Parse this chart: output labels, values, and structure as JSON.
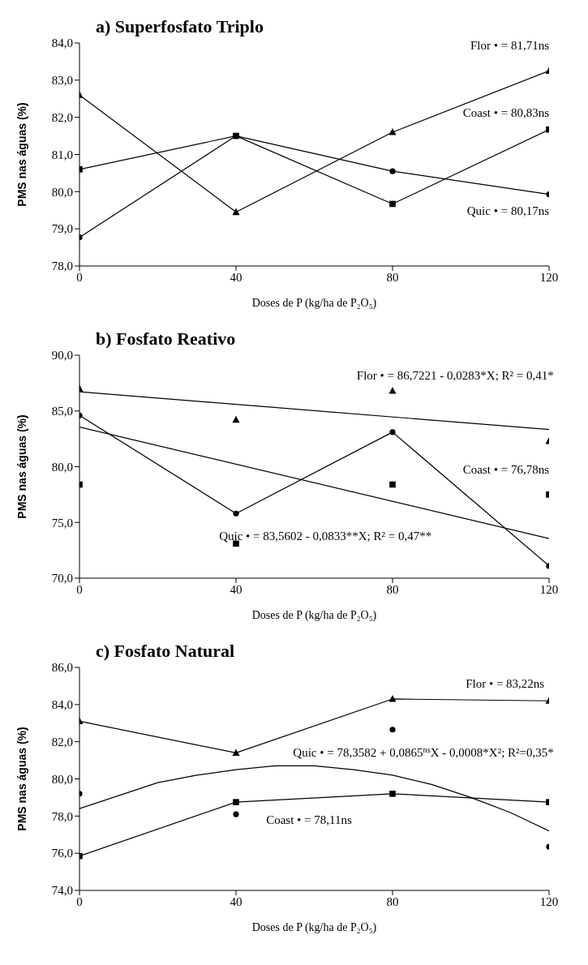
{
  "chart_data": [
    {
      "type": "line",
      "title": "a) Superfosfato Triplo",
      "xlabel": "Doses de P (kg/ha de P₂O₅)",
      "ylabel": "PMS nas águas (%)",
      "x": [
        0,
        40,
        80,
        120
      ],
      "xlim": [
        0,
        120
      ],
      "xticks": [
        0,
        40,
        80,
        120
      ],
      "ylim": [
        78,
        84
      ],
      "yticks": [
        {
          "value": 78,
          "label": "78,0"
        },
        {
          "value": 79,
          "label": "79,0"
        },
        {
          "value": 80,
          "label": "80,0"
        },
        {
          "value": 81,
          "label": "81,0"
        },
        {
          "value": 82,
          "label": "82,0"
        },
        {
          "value": 83,
          "label": "83,0"
        },
        {
          "value": 84,
          "label": "84,0"
        }
      ],
      "line_style": "solid",
      "series": [
        {
          "type": "line",
          "color": "#000000",
          "marker": "triangle",
          "values": [
            82.6,
            79.45,
            81.6,
            83.25
          ]
        },
        {
          "type": "line",
          "color": "#000000",
          "marker": "square",
          "values": [
            80.6,
            81.5,
            79.67,
            81.67
          ]
        },
        {
          "type": "line",
          "color": "#000000",
          "marker": "circle",
          "values": [
            78.77,
            81.5,
            80.55,
            79.93
          ]
        }
      ],
      "annotations": [
        "Flor • = 81,71ns",
        "Coast • = 80,83ns",
        "Quic • = 80,17ns"
      ]
    },
    {
      "type": "line",
      "title": "b) Fosfato Reativo",
      "xlabel": "Doses de P (kg/ha de P₂O₅)",
      "ylabel": "PMS nas águas (%)",
      "x": [
        0,
        40,
        80,
        120
      ],
      "xlim": [
        0,
        120
      ],
      "xticks": [
        0,
        40,
        80,
        120
      ],
      "ylim": [
        70,
        90
      ],
      "yticks": [
        {
          "value": 70,
          "label": "70,0"
        },
        {
          "value": 75,
          "label": "75,0"
        },
        {
          "value": 80,
          "label": "80,0"
        },
        {
          "value": 85,
          "label": "85,0"
        },
        {
          "value": 90,
          "label": "90,0"
        }
      ],
      "line_style": "solid",
      "series": [
        {
          "type": "scatter",
          "color": "#000000",
          "marker": "triangle",
          "values": [
            87.0,
            84.2,
            86.8,
            82.3
          ]
        },
        {
          "type": "line",
          "color": "#000000",
          "marker": "none",
          "x": [
            0,
            120
          ],
          "values": [
            86.72,
            83.33
          ]
        },
        {
          "type": "scatter",
          "color": "#000000",
          "marker": "square",
          "values": [
            78.4,
            73.1,
            78.4,
            77.5
          ]
        },
        {
          "type": "line",
          "color": "#000000",
          "marker": "circle",
          "values": [
            84.6,
            75.8,
            83.1,
            71.1
          ]
        },
        {
          "type": "line",
          "color": "#000000",
          "marker": "none",
          "x": [
            0,
            120
          ],
          "values": [
            83.56,
            73.56
          ]
        }
      ],
      "annotations": [
        "Flor • = 86,7221 - 0,0283*X; R² = 0,41*",
        "Coast • = 76,78ns",
        "Quic • = 83,5602 - 0,0833**X; R² = 0,47**"
      ]
    },
    {
      "type": "line",
      "title": "c) Fosfato Natural",
      "xlabel": "Doses de P (kg/ha de P₂O₅)",
      "ylabel": "PMS nas águas (%)",
      "x": [
        0,
        40,
        80,
        120
      ],
      "xlim": [
        0,
        120
      ],
      "xticks": [
        0,
        40,
        80,
        120
      ],
      "ylim": [
        74,
        86
      ],
      "yticks": [
        {
          "value": 74,
          "label": "74,0"
        },
        {
          "value": 76,
          "label": "76,0"
        },
        {
          "value": 78,
          "label": "78,0"
        },
        {
          "value": 80,
          "label": "80,0"
        },
        {
          "value": 82,
          "label": "82,0"
        },
        {
          "value": 84,
          "label": "84,0"
        },
        {
          "value": 86,
          "label": "86,0"
        }
      ],
      "line_style": "solid",
      "series": [
        {
          "type": "line",
          "color": "#000000",
          "marker": "triangle",
          "values": [
            83.1,
            81.4,
            84.3,
            84.2
          ]
        },
        {
          "type": "line",
          "color": "#000000",
          "marker": "square",
          "values": [
            75.85,
            78.75,
            79.2,
            78.75
          ]
        },
        {
          "type": "scatter",
          "color": "#000000",
          "marker": "circle",
          "values": [
            79.2,
            78.1,
            82.65,
            76.35
          ]
        },
        {
          "type": "line",
          "color": "#000000",
          "marker": "none",
          "x": [
            0,
            10,
            20,
            30,
            40,
            50,
            60,
            70,
            80,
            90,
            100,
            110,
            120
          ],
          "values": [
            78.4,
            79.1,
            79.8,
            80.2,
            80.5,
            80.7,
            80.7,
            80.5,
            80.2,
            79.7,
            79.0,
            78.2,
            77.2
          ]
        }
      ],
      "annotations": [
        "Flor • = 83,22ns",
        "Quic • = 78,3582 + 0,0865$^{ns}$X - 0,0008*X²; R²=0,35*",
        "Coast • = 78,11ns"
      ]
    }
  ]
}
